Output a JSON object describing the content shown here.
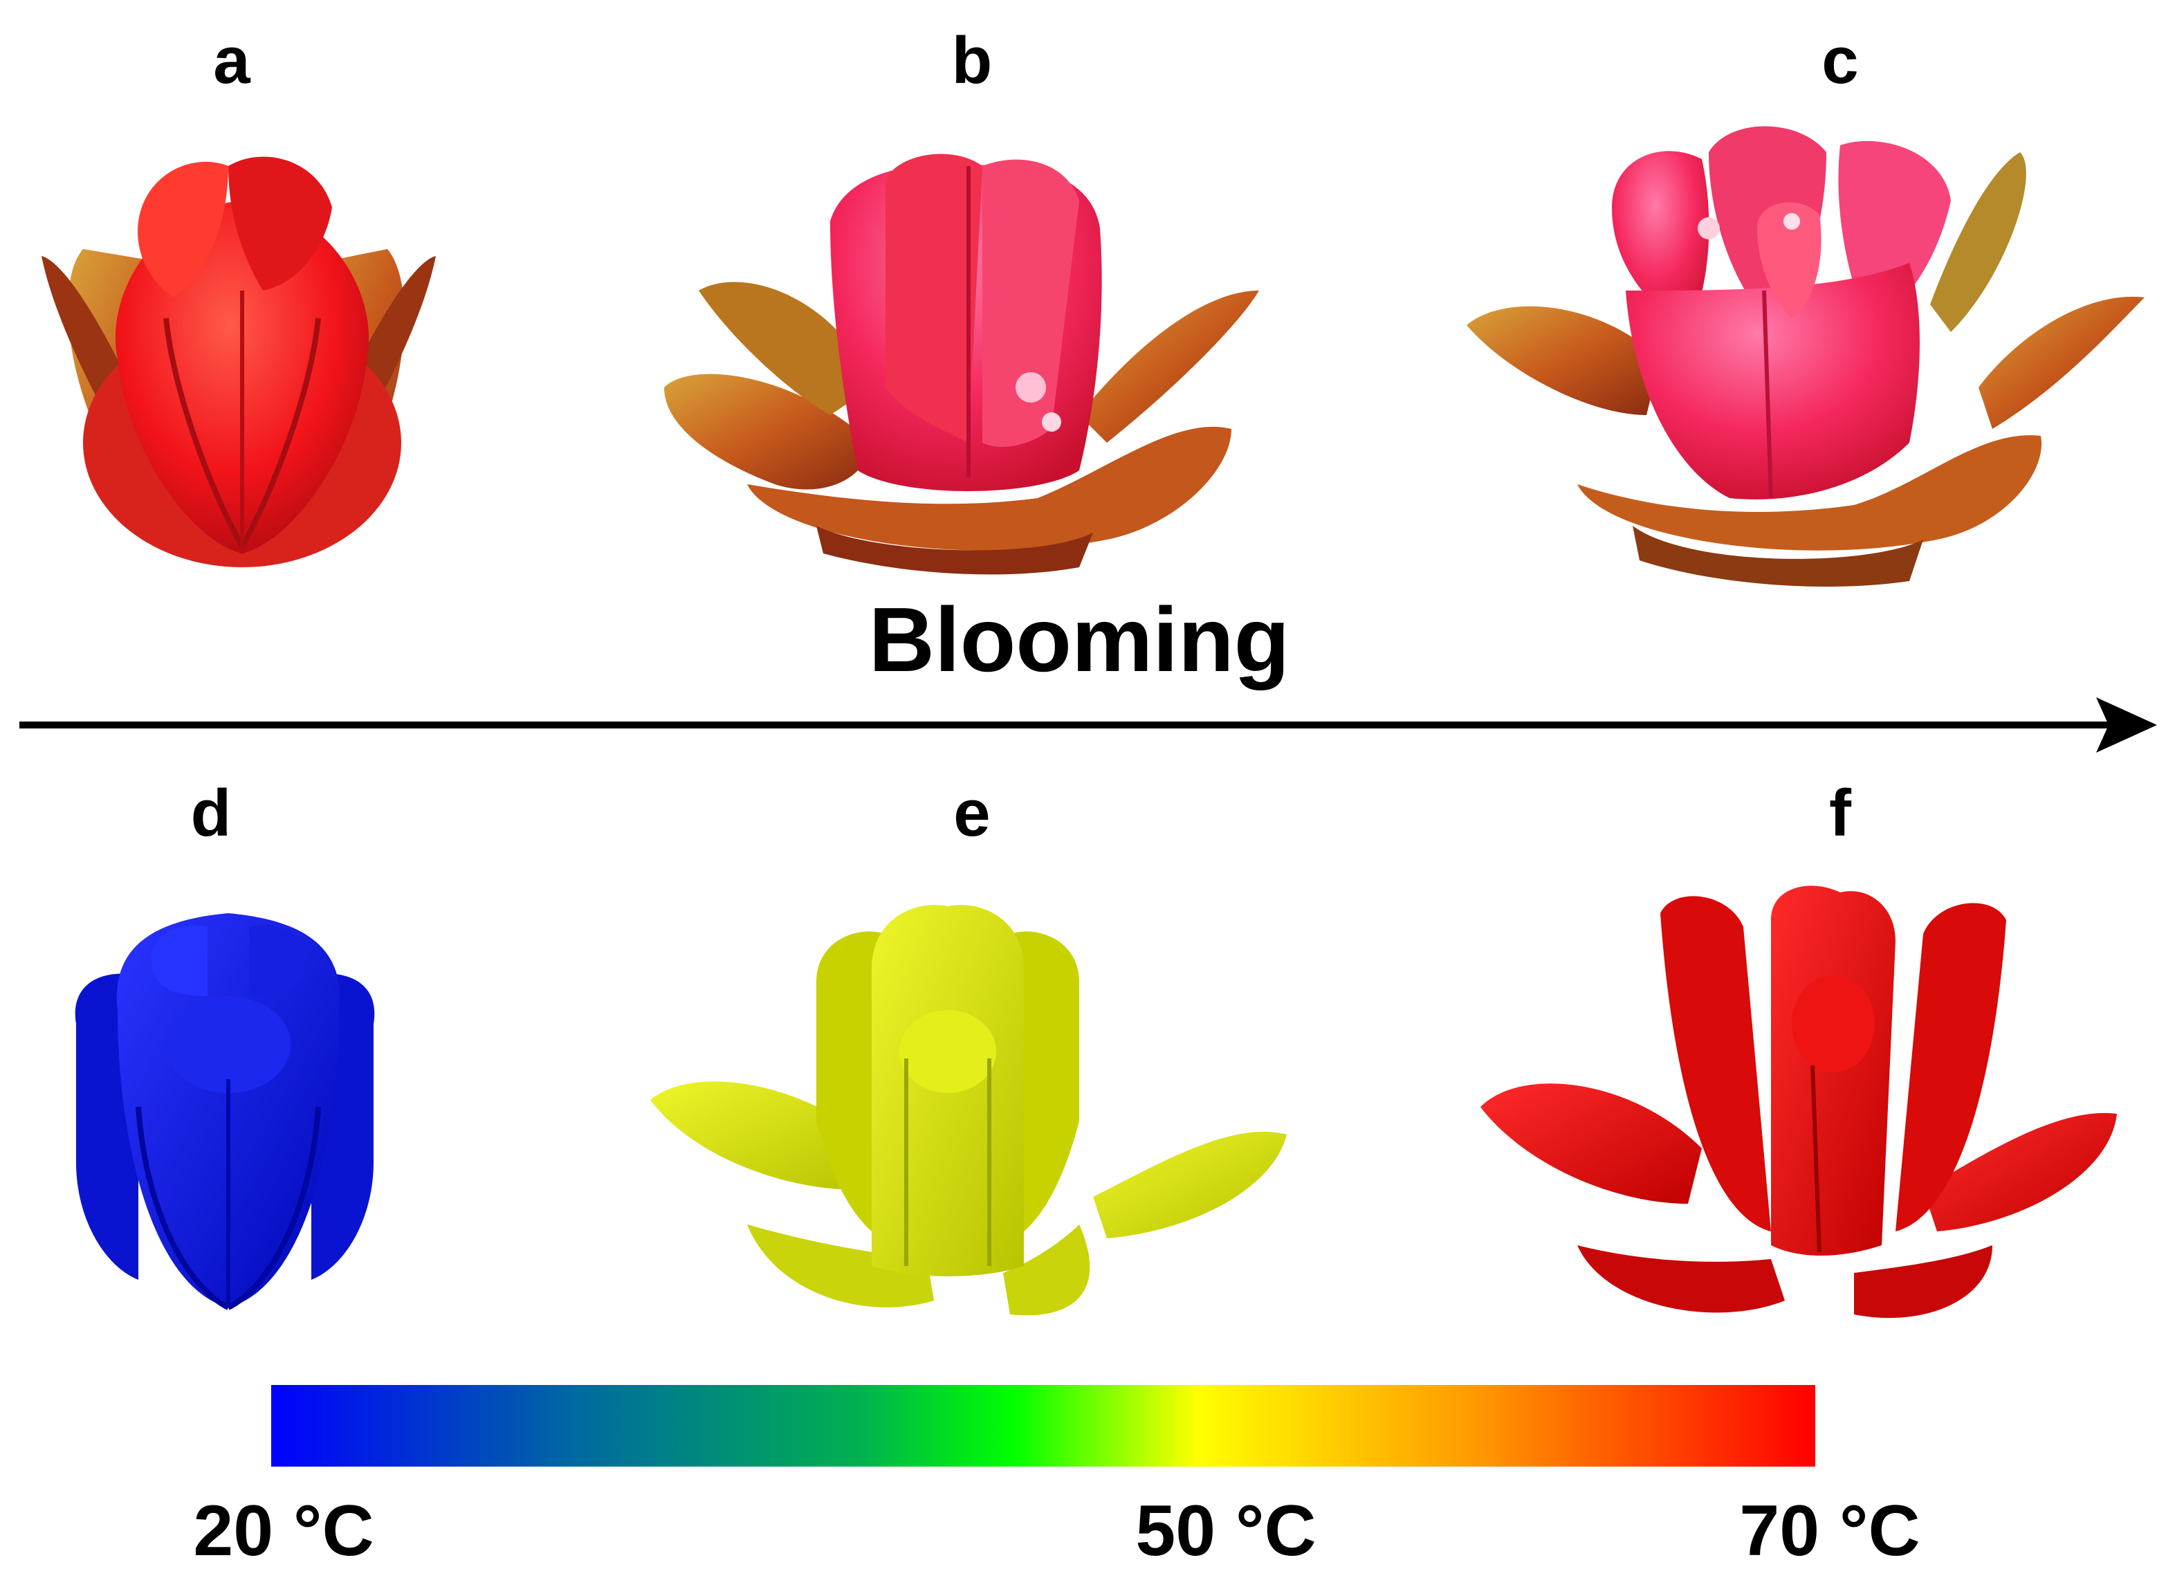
{
  "panels": {
    "a": "a",
    "b": "b",
    "c": "c",
    "d": "d",
    "e": "e",
    "f": "f"
  },
  "arrow": {
    "label": "Blooming"
  },
  "colorbar": {
    "min_label": "20 °C",
    "mid_label": "50 °C",
    "max_label": "70 °C",
    "stops": [
      "#0000ff",
      "#006aa0",
      "#00b050",
      "#00ff00",
      "#ffff00",
      "#ff9900",
      "#ff0000"
    ]
  },
  "colors": {
    "photo_red": "#ff2a24",
    "photo_pink": "#ff3a73",
    "photo_sepal": "#c2501e",
    "sim_blue": "#0a18e6",
    "sim_yellow": "#d6e60a",
    "sim_red": "#e60c0c"
  }
}
